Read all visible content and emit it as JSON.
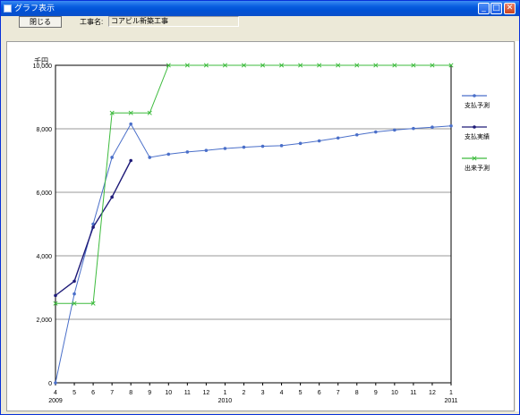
{
  "window": {
    "title": "グラフ表示",
    "min_glyph": "_",
    "max_glyph": "□",
    "close_glyph": "✕"
  },
  "toolbar": {
    "close_label": "閉じる",
    "job_label": "工事名:",
    "job_value": "コアビル新築工事"
  },
  "chart_data": {
    "type": "line",
    "ylabel": "千円",
    "ylim": [
      0,
      10000
    ],
    "yticks": [
      0,
      2000,
      4000,
      6000,
      8000,
      10000
    ],
    "ytick_labels": [
      "0",
      "2,000",
      "4,000",
      "6,000",
      "8,000",
      "10,000"
    ],
    "categories": [
      "4",
      "5",
      "6",
      "7",
      "8",
      "9",
      "10",
      "11",
      "12",
      "1",
      "2",
      "3",
      "4",
      "5",
      "6",
      "7",
      "8",
      "9",
      "10",
      "11",
      "12",
      "1"
    ],
    "year_labels": [
      {
        "index": 0,
        "label": "2009"
      },
      {
        "index": 9,
        "label": "2010"
      },
      {
        "index": 21,
        "label": "2011"
      }
    ],
    "grid": true,
    "legend_position": "right",
    "series": [
      {
        "name": "支払予測",
        "color": "#4a6fc9",
        "marker": "dot",
        "values": [
          0,
          2800,
          5000,
          7100,
          8150,
          7100,
          7200,
          7270,
          7320,
          7380,
          7420,
          7450,
          7470,
          7540,
          7620,
          7710,
          7810,
          7900,
          7960,
          8010,
          8050,
          8090
        ]
      },
      {
        "name": "支払実績",
        "color": "#1e1a78",
        "marker": "dot",
        "values": [
          2750,
          3200,
          4900,
          5850,
          7000,
          null,
          null,
          null,
          null,
          null,
          null,
          null,
          null,
          null,
          null,
          null,
          null,
          null,
          null,
          null,
          null,
          null
        ]
      },
      {
        "name": "出来予測",
        "color": "#3dbb3d",
        "marker": "x",
        "values": [
          2500,
          2500,
          2500,
          8500,
          8500,
          8500,
          10000,
          10000,
          10000,
          10000,
          10000,
          10000,
          10000,
          10000,
          10000,
          10000,
          10000,
          10000,
          10000,
          10000,
          10000,
          10000
        ]
      }
    ]
  }
}
